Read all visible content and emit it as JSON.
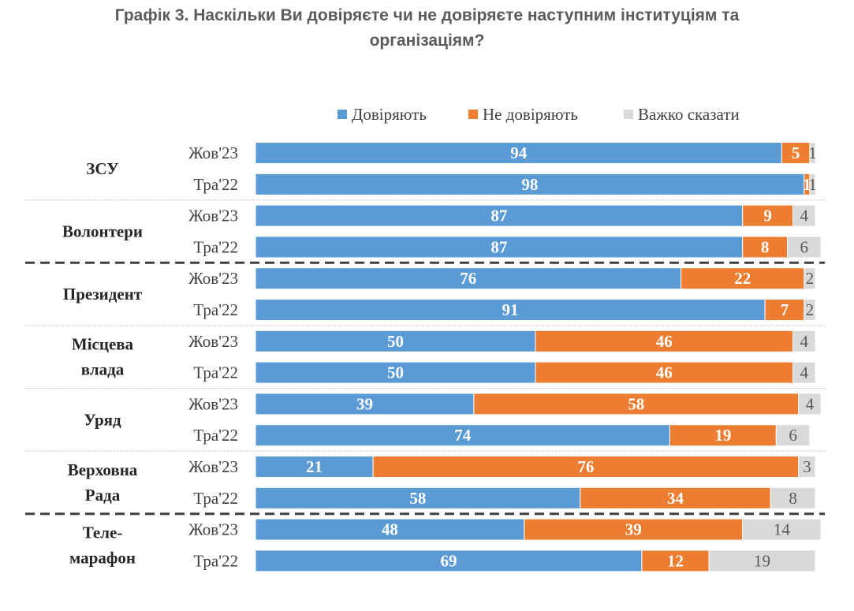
{
  "chart_data": {
    "type": "bar",
    "stacked": true,
    "orientation": "horizontal",
    "title_lines": [
      "Графік 3. Наскільки Ви довіряєте чи не довіряєте наступним інституціям та",
      "організаціям?"
    ],
    "legend": {
      "position": "top",
      "entries": [
        "Довіряють",
        "Не довіряють",
        "Важко сказати"
      ]
    },
    "colors": {
      "trust": "#5b9bd5",
      "distrust": "#ed7d31",
      "hard_to_say": "#d9d9d9"
    },
    "xlim": [
      0,
      100
    ],
    "groups": [
      {
        "label_lines": [
          "ЗСУ"
        ],
        "rows": [
          {
            "period": "Жов'23",
            "values": [
              94,
              5,
              1
            ]
          },
          {
            "period": "Тра'22",
            "values": [
              98,
              1,
              1
            ]
          }
        ]
      },
      {
        "label_lines": [
          "Волонтери"
        ],
        "rows": [
          {
            "period": "Жов'23",
            "values": [
              87,
              9,
              4
            ]
          },
          {
            "period": "Тра'22",
            "values": [
              87,
              8,
              6
            ]
          }
        ]
      },
      {
        "label_lines": [
          "Президент"
        ],
        "rows": [
          {
            "period": "Жов'23",
            "values": [
              76,
              22,
              2
            ]
          },
          {
            "period": "Тра'22",
            "values": [
              91,
              7,
              2
            ]
          }
        ]
      },
      {
        "label_lines": [
          "Місцева",
          "влада"
        ],
        "rows": [
          {
            "period": "Жов'23",
            "values": [
              50,
              46,
              4
            ]
          },
          {
            "period": "Тра'22",
            "values": [
              50,
              46,
              4
            ]
          }
        ]
      },
      {
        "label_lines": [
          "Уряд"
        ],
        "rows": [
          {
            "period": "Жов'23",
            "values": [
              39,
              58,
              4
            ]
          },
          {
            "period": "Тра'22",
            "values": [
              74,
              19,
              6
            ]
          }
        ]
      },
      {
        "label_lines": [
          "Верховна",
          "Рада"
        ],
        "rows": [
          {
            "period": "Жов'23",
            "values": [
              21,
              76,
              3
            ]
          },
          {
            "period": "Тра'22",
            "values": [
              58,
              34,
              8
            ]
          }
        ]
      },
      {
        "label_lines": [
          "Теле-",
          "марафон"
        ],
        "rows": [
          {
            "period": "Жов'23",
            "values": [
              48,
              39,
              14
            ]
          },
          {
            "period": "Тра'22",
            "values": [
              69,
              12,
              19
            ]
          }
        ]
      }
    ],
    "separators": [
      "dotted",
      "dashed",
      "dotted",
      "dotted",
      "dotted",
      "dashed"
    ]
  }
}
